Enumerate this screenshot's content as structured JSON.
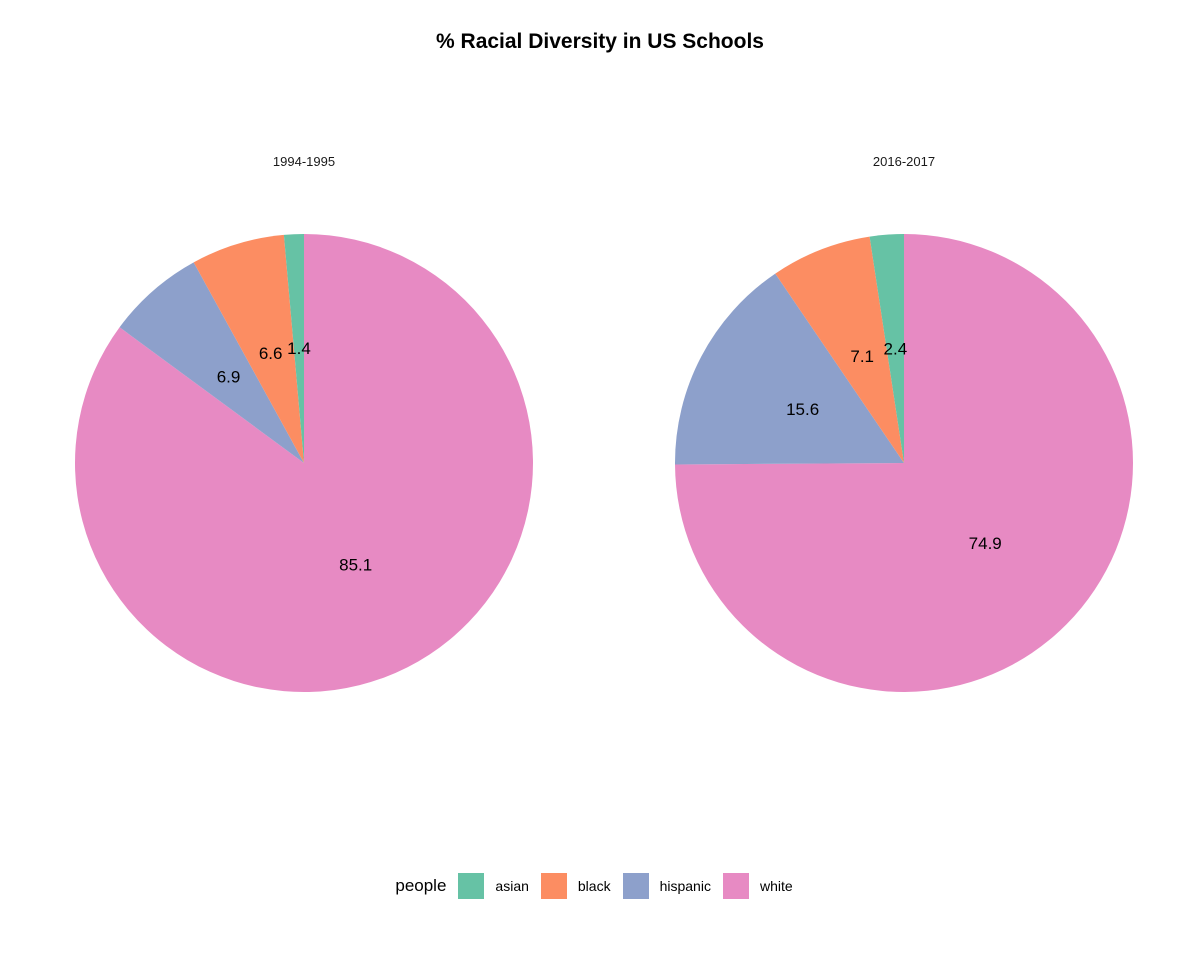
{
  "chart_data": {
    "type": "pie",
    "title": "% Racial Diversity in US Schools",
    "legend": {
      "title": "people",
      "placement": "bottom",
      "entries": [
        {
          "label": "asian",
          "color": "#66C2A5"
        },
        {
          "label": "black",
          "color": "#FC8D62"
        },
        {
          "label": "hispanic",
          "color": "#8DA0CB"
        },
        {
          "label": "white",
          "color": "#E78AC3"
        }
      ]
    },
    "facets": [
      {
        "label": "1994-1995",
        "slices": [
          {
            "category": "asian",
            "value": 1.4,
            "label": "1.4"
          },
          {
            "category": "black",
            "value": 6.6,
            "label": "6.6"
          },
          {
            "category": "hispanic",
            "value": 6.9,
            "label": "6.9"
          },
          {
            "category": "white",
            "value": 85.1,
            "label": "85.1"
          }
        ]
      },
      {
        "label": "2016-2017",
        "slices": [
          {
            "category": "asian",
            "value": 2.4,
            "label": "2.4"
          },
          {
            "category": "black",
            "value": 7.1,
            "label": "7.1"
          },
          {
            "category": "hispanic",
            "value": 15.6,
            "label": "15.6"
          },
          {
            "category": "white",
            "value": 74.9,
            "label": "74.9"
          }
        ]
      }
    ]
  }
}
